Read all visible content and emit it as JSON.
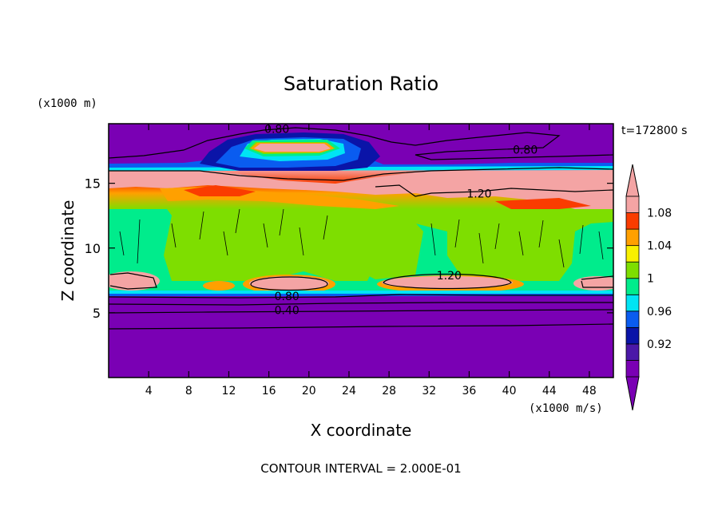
{
  "chart_data": {
    "type": "heatmap",
    "title": "Saturation Ratio",
    "xlabel": "X coordinate",
    "ylabel": "Z coordinate",
    "x_unit_label": "(x1000 m/s)",
    "y_unit_label": "(x1000 m)",
    "time_label": "t=172800 s",
    "footer": "CONTOUR INTERVAL = 2.000E-01",
    "xlim": [
      0,
      50.4
    ],
    "ylim": [
      0,
      19.6
    ],
    "x_ticks": [
      4,
      8,
      12,
      16,
      20,
      24,
      28,
      32,
      36,
      40,
      44,
      48
    ],
    "y_ticks": [
      5,
      10,
      15
    ],
    "colorbar": {
      "levels": [
        {
          "label": "",
          "color": "#7a00b4"
        },
        {
          "label": "0.92",
          "color": "#4b18a8"
        },
        {
          "label": "",
          "color": "#0a14a8"
        },
        {
          "label": "0.96",
          "color": "#0a5cf0"
        },
        {
          "label": "",
          "color": "#00e4f4"
        },
        {
          "label": "1",
          "color": "#00ec8c"
        },
        {
          "label": "",
          "color": "#7ede00"
        },
        {
          "label": "1.04",
          "color": "#f8f000"
        },
        {
          "label": "",
          "color": "#ffa000"
        },
        {
          "label": "1.08",
          "color": "#fa3c00"
        },
        {
          "label": "",
          "color": "#f4a4a4"
        }
      ],
      "low_extension_color": "#7a00b4",
      "high_extension_color": "#f4a4a4"
    },
    "contour_labels": [
      {
        "text": "0.80",
        "x": 16.8,
        "z": 19.2
      },
      {
        "text": "0.80",
        "x": 41.6,
        "z": 17.6
      },
      {
        "text": "1.20",
        "x": 37.0,
        "z": 14.2
      },
      {
        "text": "1.20",
        "x": 34.0,
        "z": 7.9
      },
      {
        "text": "0.80",
        "x": 17.8,
        "z": 6.3
      },
      {
        "text": "0.40",
        "x": 17.8,
        "z": 5.2
      }
    ]
  }
}
